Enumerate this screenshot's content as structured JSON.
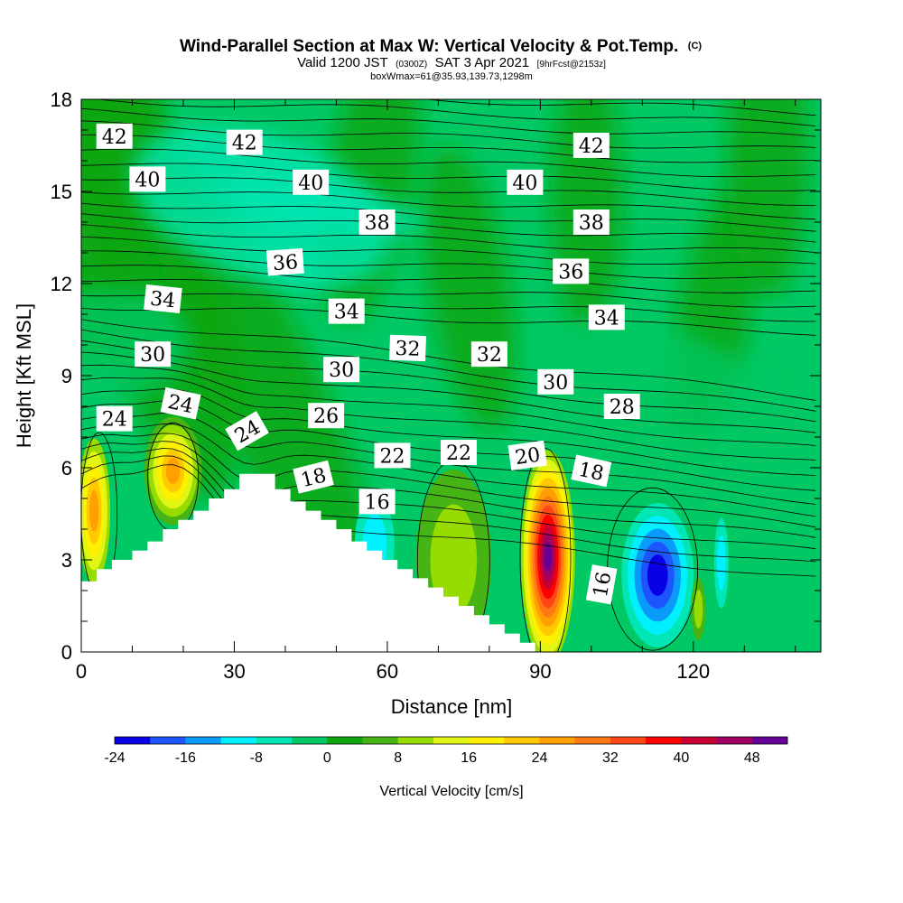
{
  "header": {
    "title_main": "Wind-Parallel Section at Max W: Vertical Velocity & Pot.Temp.",
    "title_copyright": "(C)",
    "subtitle_prefix": "Valid 1200 JST",
    "subtitle_utc": "(0300Z)",
    "subtitle_date": "SAT 3 Apr 2021",
    "subtitle_forecast": "[9hrFcst@2153z]",
    "box_info": "boxWmax=61@35.93,139.73,1298m"
  },
  "chart_data": {
    "type": "heatmap",
    "xlabel": "Distance [nm]",
    "ylabel": "Height [Kft MSL]",
    "xlim": [
      0,
      145
    ],
    "ylim": [
      0,
      18
    ],
    "x_ticks": [
      "0",
      "30",
      "60",
      "90",
      "120"
    ],
    "y_ticks": [
      "0",
      "3",
      "6",
      "9",
      "12",
      "15",
      "18"
    ],
    "colorbar": {
      "title": "Vertical Velocity [cm/s]",
      "levels": [
        -24,
        -20,
        -16,
        -12,
        -8,
        -4,
        0,
        4,
        8,
        12,
        16,
        20,
        24,
        28,
        32,
        36,
        40,
        44,
        48,
        52
      ],
      "labels": [
        "-24",
        "-16",
        "-8",
        "0",
        "8",
        "16",
        "24",
        "32",
        "40",
        "48"
      ],
      "colors": [
        "#0a00e6",
        "#1e55ff",
        "#0b9af7",
        "#00f0ff",
        "#00e6b4",
        "#00c864",
        "#0fa50f",
        "#46b414",
        "#96dc00",
        "#e1f514",
        "#fff000",
        "#ffc800",
        "#ffa000",
        "#ff7814",
        "#ff4614",
        "#ff0000",
        "#c80032",
        "#a00064",
        "#640096"
      ]
    },
    "terrain_kft": [
      [
        0,
        2.3
      ],
      [
        3,
        2.3
      ],
      [
        3,
        2.7
      ],
      [
        6,
        2.7
      ],
      [
        6,
        3.0
      ],
      [
        10,
        3.0
      ],
      [
        10,
        3.3
      ],
      [
        13,
        3.3
      ],
      [
        13,
        3.6
      ],
      [
        16,
        3.6
      ],
      [
        16,
        4.0
      ],
      [
        19,
        4.0
      ],
      [
        19,
        4.3
      ],
      [
        22,
        4.3
      ],
      [
        22,
        4.6
      ],
      [
        25,
        4.6
      ],
      [
        25,
        5.0
      ],
      [
        28,
        5.0
      ],
      [
        28,
        5.3
      ],
      [
        31,
        5.3
      ],
      [
        31,
        5.8
      ],
      [
        38,
        5.8
      ],
      [
        38,
        5.3
      ],
      [
        41,
        5.3
      ],
      [
        41,
        4.9
      ],
      [
        44,
        4.9
      ],
      [
        44,
        4.6
      ],
      [
        47,
        4.6
      ],
      [
        47,
        4.3
      ],
      [
        50,
        4.3
      ],
      [
        50,
        4.0
      ],
      [
        53,
        4.0
      ],
      [
        53,
        3.6
      ],
      [
        56,
        3.6
      ],
      [
        56,
        3.3
      ],
      [
        59,
        3.3
      ],
      [
        59,
        3.0
      ],
      [
        62,
        3.0
      ],
      [
        62,
        2.7
      ],
      [
        65,
        2.7
      ],
      [
        65,
        2.4
      ],
      [
        68,
        2.4
      ],
      [
        68,
        2.1
      ],
      [
        71,
        2.1
      ],
      [
        71,
        1.8
      ],
      [
        74,
        1.8
      ],
      [
        74,
        1.5
      ],
      [
        77,
        1.5
      ],
      [
        77,
        1.2
      ],
      [
        80,
        1.2
      ],
      [
        80,
        0.9
      ],
      [
        83,
        0.9
      ],
      [
        83,
        0.6
      ],
      [
        86,
        0.6
      ],
      [
        86,
        0.3
      ],
      [
        89,
        0.3
      ],
      [
        89,
        0.0
      ]
    ],
    "theta_contour_labels": [
      {
        "text": "42",
        "x": 6.5,
        "y": 16.8,
        "rot": 0
      },
      {
        "text": "42",
        "x": 32,
        "y": 16.6,
        "rot": 0
      },
      {
        "text": "42",
        "x": 100,
        "y": 16.5,
        "rot": 0
      },
      {
        "text": "40",
        "x": 13,
        "y": 15.4,
        "rot": 0
      },
      {
        "text": "40",
        "x": 45,
        "y": 15.3,
        "rot": 0
      },
      {
        "text": "40",
        "x": 87,
        "y": 15.3,
        "rot": 0
      },
      {
        "text": "38",
        "x": 58,
        "y": 14.0,
        "rot": 0
      },
      {
        "text": "38",
        "x": 100,
        "y": 14.0,
        "rot": 0
      },
      {
        "text": "36",
        "x": 40,
        "y": 12.7,
        "rot": -4
      },
      {
        "text": "36",
        "x": 96,
        "y": 12.4,
        "rot": 0
      },
      {
        "text": "34",
        "x": 16,
        "y": 11.5,
        "rot": 6
      },
      {
        "text": "34",
        "x": 52,
        "y": 11.1,
        "rot": 0
      },
      {
        "text": "34",
        "x": 103,
        "y": 10.9,
        "rot": 0
      },
      {
        "text": "32",
        "x": 64,
        "y": 9.9,
        "rot": 2
      },
      {
        "text": "32",
        "x": 80,
        "y": 9.7,
        "rot": 0
      },
      {
        "text": "30",
        "x": 14,
        "y": 9.7,
        "rot": 0
      },
      {
        "text": "30",
        "x": 51,
        "y": 9.2,
        "rot": 0
      },
      {
        "text": "30",
        "x": 93,
        "y": 8.8,
        "rot": 0
      },
      {
        "text": "28",
        "x": 106,
        "y": 8.0,
        "rot": 0
      },
      {
        "text": "26",
        "x": 48,
        "y": 7.7,
        "rot": 0
      },
      {
        "text": "24",
        "x": 6.5,
        "y": 7.6,
        "rot": 0
      },
      {
        "text": "24",
        "x": 19.5,
        "y": 8.1,
        "rot": 12
      },
      {
        "text": "24",
        "x": 32.5,
        "y": 7.2,
        "rot": -30
      },
      {
        "text": "22",
        "x": 61,
        "y": 6.4,
        "rot": 0
      },
      {
        "text": "22",
        "x": 74,
        "y": 6.5,
        "rot": 0
      },
      {
        "text": "20",
        "x": 87.5,
        "y": 6.4,
        "rot": -8
      },
      {
        "text": "18",
        "x": 45.5,
        "y": 5.7,
        "rot": -14
      },
      {
        "text": "18",
        "x": 100,
        "y": 5.9,
        "rot": 12
      },
      {
        "text": "16",
        "x": 58,
        "y": 4.9,
        "rot": 0
      },
      {
        "text": "16",
        "x": 102,
        "y": 2.2,
        "rot": -80
      }
    ]
  }
}
